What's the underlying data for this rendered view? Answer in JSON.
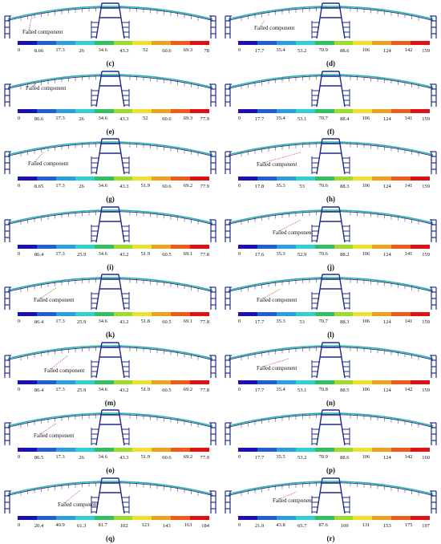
{
  "colors": {
    "structure": "#1f2a8c",
    "deck": "#2bb5a6",
    "deck_hot": "#7fd85a",
    "hanger": "#555555",
    "callout": "#cc3333",
    "scale": [
      "#1a0fb8",
      "#1f5fd6",
      "#2a9fe0",
      "#2fd0d0",
      "#30c060",
      "#9fdc2a",
      "#f0e030",
      "#f0a020",
      "#f05a18",
      "#e01010"
    ]
  },
  "icons": {
    "bridge": "cable-stayed-bridge-icon",
    "leader": "callout-leader-line-icon"
  },
  "failed_label": "Failed component",
  "panels": [
    {
      "label": "(c)",
      "annotated": true,
      "ticks": [
        "0",
        "8.66",
        "17.3",
        "26",
        "34.6",
        "43.3",
        "52",
        "60.6",
        "69.3",
        "78"
      ]
    },
    {
      "label": "(d)",
      "annotated": true,
      "ticks": [
        "0",
        "17.7",
        "35.4",
        "53.2",
        "70.9",
        "88.6",
        "106",
        "124",
        "142",
        "159"
      ]
    },
    {
      "label": "(e)",
      "annotated": true,
      "ticks": [
        "0",
        "86.6",
        "17.3",
        "26",
        "34.6",
        "43.3",
        "52",
        "60.6",
        "69.3",
        "77.9"
      ]
    },
    {
      "label": "(f)",
      "annotated": false,
      "ticks": [
        "0",
        "17.7",
        "35.4",
        "53.1",
        "70.7",
        "88.4",
        "106",
        "124",
        "141",
        "159"
      ]
    },
    {
      "label": "(g)",
      "annotated": true,
      "ticks": [
        "0",
        "8.65",
        "17.3",
        "26",
        "34.6",
        "43.3",
        "51.9",
        "60.6",
        "69.2",
        "77.9"
      ]
    },
    {
      "label": "(h)",
      "annotated": true,
      "ticks": [
        "0",
        "17.8",
        "35.3",
        "53",
        "70.6",
        "88.3",
        "106",
        "124",
        "141",
        "159"
      ]
    },
    {
      "label": "(i)",
      "annotated": false,
      "ticks": [
        "0",
        "86.4",
        "17.3",
        "25.9",
        "34.6",
        "43.2",
        "51.9",
        "60.5",
        "69.1",
        "77.8"
      ]
    },
    {
      "label": "(j)",
      "annotated": true,
      "ticks": [
        "0",
        "17.6",
        "35.3",
        "52.9",
        "70.6",
        "88.2",
        "106",
        "124",
        "141",
        "159"
      ]
    },
    {
      "label": "(k)",
      "annotated": true,
      "ticks": [
        "0",
        "86.4",
        "17.3",
        "25.9",
        "34.6",
        "43.2",
        "51.8",
        "60.5",
        "69.1",
        "77.8"
      ]
    },
    {
      "label": "(l)",
      "annotated": true,
      "ticks": [
        "0",
        "17.7",
        "35.3",
        "53",
        "70.7",
        "88.3",
        "106",
        "124",
        "141",
        "159"
      ]
    },
    {
      "label": "(m)",
      "annotated": true,
      "ticks": [
        "0",
        "86.4",
        "17.3",
        "25.9",
        "34.6",
        "43.2",
        "51.9",
        "60.5",
        "69.2",
        "77.8"
      ]
    },
    {
      "label": "(n)",
      "annotated": true,
      "ticks": [
        "0",
        "17.7",
        "35.4",
        "53.1",
        "70.8",
        "88.5",
        "106",
        "124",
        "142",
        "159"
      ]
    },
    {
      "label": "(o)",
      "annotated": true,
      "ticks": [
        "0",
        "86.5",
        "17.3",
        "26",
        "34.6",
        "43.3",
        "51.9",
        "60.6",
        "69.2",
        "77.9"
      ]
    },
    {
      "label": "(p)",
      "annotated": false,
      "ticks": [
        "0",
        "17.7",
        "35.5",
        "53.2",
        "70.9",
        "88.6",
        "106",
        "124",
        "142",
        "160"
      ]
    },
    {
      "label": "(q)",
      "annotated": true,
      "ticks": [
        "0",
        "20.4",
        "40.9",
        "61.3",
        "81.7",
        "102",
        "123",
        "143",
        "163",
        "184"
      ]
    },
    {
      "label": "(r)",
      "annotated": true,
      "ticks": [
        "0",
        "21.9",
        "43.8",
        "65.7",
        "87.6",
        "109",
        "131",
        "153",
        "175",
        "197"
      ]
    }
  ]
}
